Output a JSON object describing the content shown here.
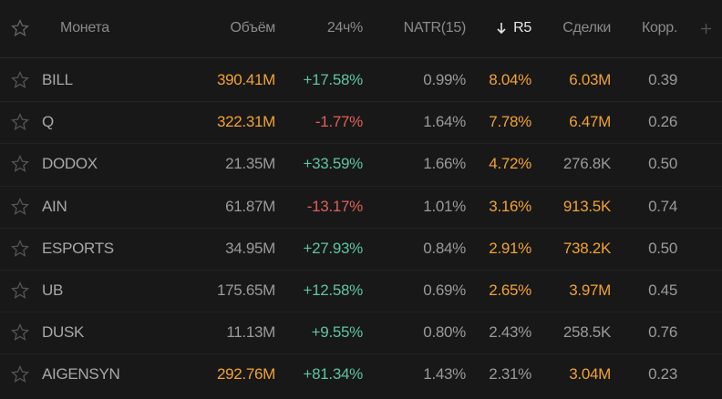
{
  "table": {
    "header": [
      "Монета",
      "Объём",
      "24ч%",
      "NATR(15)",
      "R5",
      "Сделки",
      "Корр."
    ],
    "rows": [
      {
        "cells": [
          "BILL",
          "390.41M",
          "+17.58%",
          "0.99%",
          "8.04%",
          "6.03M",
          "0.39"
        ],
        "colors": [
          "#a8a8a8",
          "#f0a332",
          "#5fc4a0",
          "#9a9a9a",
          "#f0a332",
          "#f0a332",
          "#9a9a9a"
        ]
      },
      {
        "cells": [
          "Q",
          "322.31M",
          "-1.77%",
          "1.64%",
          "7.78%",
          "6.47M",
          "0.26"
        ],
        "colors": [
          "#a8a8a8",
          "#f0a332",
          "#e0605a",
          "#9a9a9a",
          "#f0a332",
          "#f0a332",
          "#9a9a9a"
        ]
      },
      {
        "cells": [
          "DODOX",
          "21.35M",
          "+33.59%",
          "1.66%",
          "4.72%",
          "276.8K",
          "0.50"
        ],
        "colors": [
          "#a8a8a8",
          "#9a9a9a",
          "#5fc4a0",
          "#9a9a9a",
          "#f0a332",
          "#9a9a9a",
          "#9a9a9a"
        ]
      },
      {
        "cells": [
          "AIN",
          "61.87M",
          "-13.17%",
          "1.01%",
          "3.16%",
          "913.5K",
          "0.74"
        ],
        "colors": [
          "#a8a8a8",
          "#9a9a9a",
          "#e0605a",
          "#9a9a9a",
          "#f0a332",
          "#f0a332",
          "#9a9a9a"
        ]
      },
      {
        "cells": [
          "ESPORTS",
          "34.95M",
          "+27.93%",
          "0.84%",
          "2.91%",
          "738.2K",
          "0.50"
        ],
        "colors": [
          "#a8a8a8",
          "#9a9a9a",
          "#5fc4a0",
          "#9a9a9a",
          "#f0a332",
          "#f0a332",
          "#9a9a9a"
        ]
      },
      {
        "cells": [
          "UB",
          "175.65M",
          "+12.58%",
          "0.69%",
          "2.65%",
          "3.97M",
          "0.45"
        ],
        "colors": [
          "#a8a8a8",
          "#9a9a9a",
          "#5fc4a0",
          "#9a9a9a",
          "#f0a332",
          "#f0a332",
          "#9a9a9a"
        ]
      },
      {
        "cells": [
          "DUSK",
          "11.13M",
          "+9.55%",
          "0.80%",
          "2.43%",
          "258.5K",
          "0.76"
        ],
        "colors": [
          "#a8a8a8",
          "#9a9a9a",
          "#5fc4a0",
          "#9a9a9a",
          "#9a9a9a",
          "#9a9a9a",
          "#9a9a9a"
        ]
      },
      {
        "cells": [
          "AIGENSYN",
          "292.76M",
          "+81.34%",
          "1.43%",
          "2.31%",
          "3.04M",
          "0.23"
        ],
        "colors": [
          "#a8a8a8",
          "#f0a332",
          "#5fc4a0",
          "#9a9a9a",
          "#9a9a9a",
          "#f0a332",
          "#9a9a9a"
        ]
      }
    ]
  }
}
